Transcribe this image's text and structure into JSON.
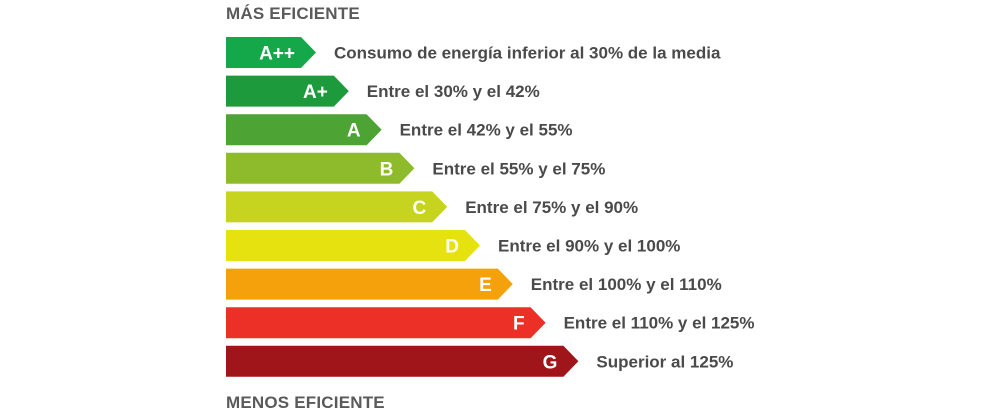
{
  "header": {
    "top_caption": "MÁS EFICIENTE",
    "bottom_caption": "MENOS EFICIENTE"
  },
  "chart_data": {
    "type": "bar",
    "categories": [
      "A++",
      "A+",
      "A",
      "B",
      "C",
      "D",
      "E",
      "F",
      "G"
    ],
    "labels": [
      "Consumo de energía inferior al 30% de la media",
      "Entre el 30% y el 42%",
      "Entre el 42% y el 55%",
      "Entre el 55% y el 75%",
      "Entre el 75% y el 90%",
      "Entre el 90% y el 100%",
      "Entre el 100% y el 110%",
      "Entre el 110% y el 125%",
      "Superior al 125%"
    ],
    "colors": [
      "#15a84a",
      "#1d9a3c",
      "#4da434",
      "#8dbb2c",
      "#c6d41f",
      "#e6e20f",
      "#f5a10c",
      "#ec3027",
      "#a01519"
    ],
    "legend": "none",
    "grid": false
  }
}
